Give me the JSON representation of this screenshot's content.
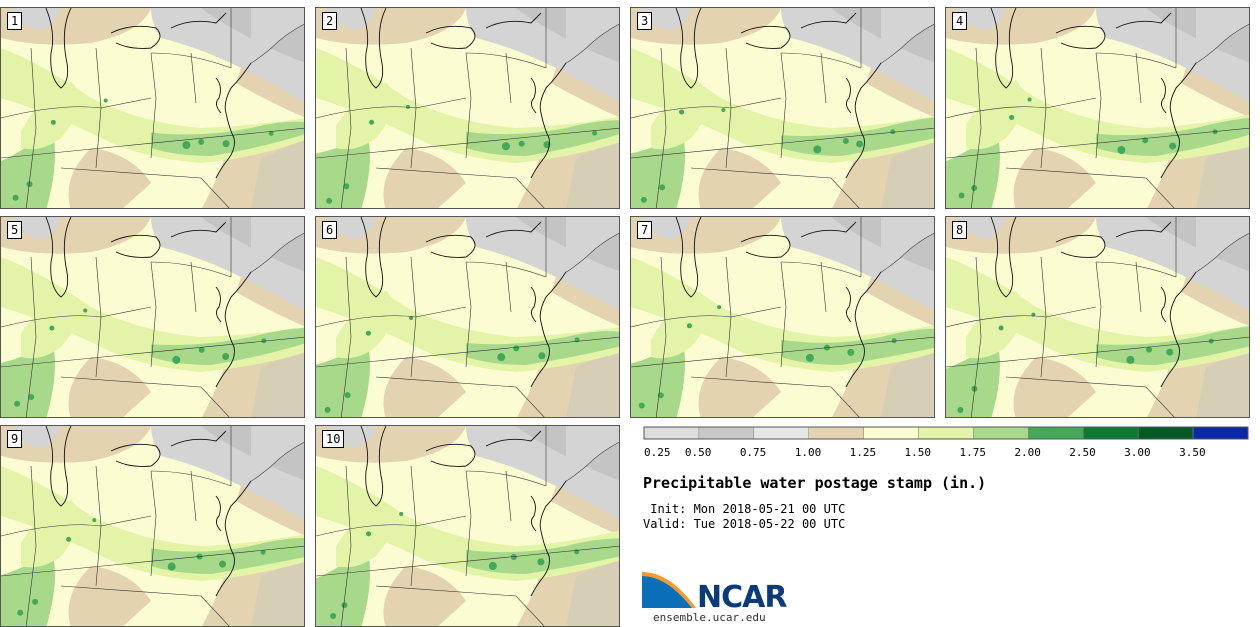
{
  "panels": [
    {
      "label": "1"
    },
    {
      "label": "2"
    },
    {
      "label": "3"
    },
    {
      "label": "4"
    },
    {
      "label": "5"
    },
    {
      "label": "6"
    },
    {
      "label": "7"
    },
    {
      "label": "8"
    },
    {
      "label": "9"
    },
    {
      "label": "10"
    }
  ],
  "legend": {
    "colors": [
      "#dcdcdc",
      "#c8c8c8",
      "#e6e6e6",
      "#e3d3b0",
      "#fcfcd2",
      "#e3f4a8",
      "#a8d98a",
      "#44a85a",
      "#0b7a35",
      "#045a27",
      "#0a28a8"
    ],
    "labels": [
      "0.25",
      "0.50",
      "0.75",
      "1.00",
      "1.25",
      "1.50",
      "1.75",
      "2.00",
      "2.50",
      "3.00",
      "3.50"
    ]
  },
  "title": "Precipitable water postage stamp (in.)",
  "init": " Init: Mon 2018-05-21 00 UTC",
  "valid": "Valid: Tue 2018-05-22 00 UTC",
  "logo": {
    "text": "NCAR",
    "url": "ensemble.ucar.edu",
    "blue": "#0a6fb8",
    "orange": "#f29a2e"
  }
}
